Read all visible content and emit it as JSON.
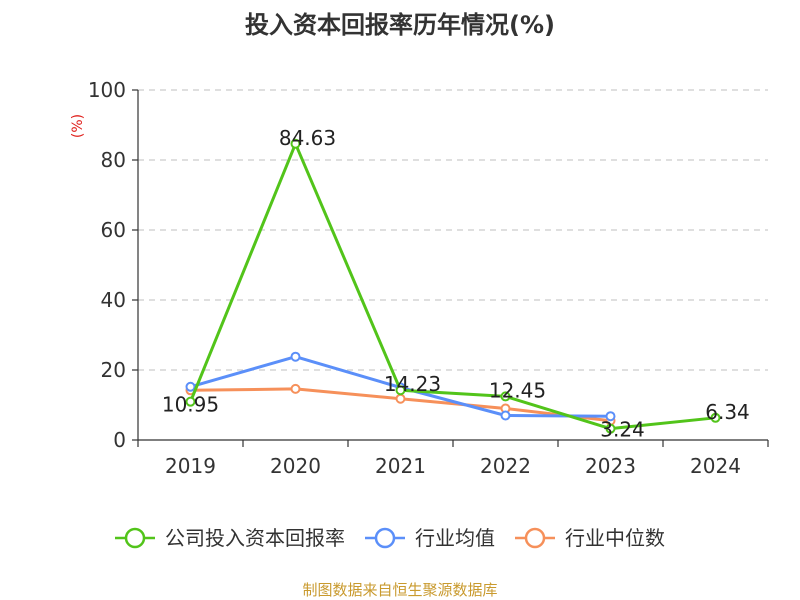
{
  "chart_data": {
    "type": "line",
    "title": "投入资本回报率历年情况(%)",
    "ylabel": "(%)",
    "xlabel": "",
    "ylim": [
      0,
      100
    ],
    "yticks": [
      0,
      20,
      40,
      60,
      80,
      100
    ],
    "categories": [
      "2019",
      "2020",
      "2021",
      "2022",
      "2023",
      "2024"
    ],
    "series": [
      {
        "name": "公司投入资本回报率",
        "color": "#52c41a",
        "values": [
          10.95,
          84.63,
          14.23,
          12.45,
          3.24,
          6.34
        ],
        "labels": [
          "10.95",
          "84.63",
          "14.23",
          "12.45",
          "3.24",
          "6.34"
        ]
      },
      {
        "name": "行业均值",
        "color": "#5b8ff9",
        "values": [
          15.2,
          23.8,
          15.0,
          7.0,
          6.8,
          null
        ]
      },
      {
        "name": "行业中位数",
        "color": "#f6905a",
        "values": [
          14.2,
          14.6,
          11.8,
          9.0,
          5.5,
          null
        ]
      }
    ],
    "grid": true,
    "legend": "bottom"
  },
  "source": "制图数据来自恒生聚源数据库"
}
